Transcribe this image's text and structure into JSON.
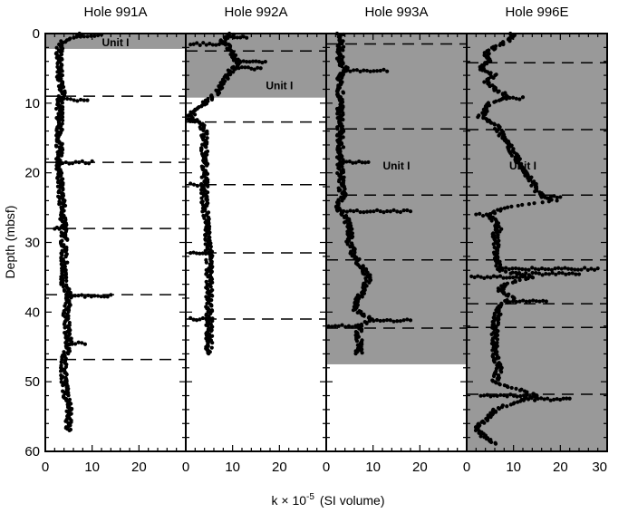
{
  "chart_data": {
    "type": "scatter",
    "ylabel": "Depth (mbsf)",
    "xlabel_prefix": "k × 10",
    "xlabel_exp": "-5",
    "xlabel_suffix": "(SI volume)",
    "ylim": [
      0,
      60
    ],
    "y_inverted": true,
    "xlim": [
      0,
      30
    ],
    "y_ticks": [
      "0",
      "10",
      "20",
      "30",
      "40",
      "50",
      "60"
    ],
    "x_ticks": [
      "0",
      "10",
      "20",
      "30"
    ],
    "grid": false,
    "colors": {
      "unit_fill": "#999999",
      "points": "#000000",
      "background": "#ffffff"
    },
    "panels": [
      {
        "title": "Hole 991A",
        "unit": {
          "label": "Unit   I",
          "top": 0,
          "bottom": 2.2,
          "label_x": 15,
          "label_y": 1.3
        },
        "boundaries": [
          9,
          18.5,
          28,
          37.5,
          46.8
        ],
        "profile": [
          [
            0,
            8
          ],
          [
            0.5,
            6
          ],
          [
            1,
            4
          ],
          [
            1.5,
            3
          ],
          [
            2,
            3
          ],
          [
            4,
            3
          ],
          [
            6,
            3
          ],
          [
            8,
            3.5
          ],
          [
            9,
            3.5
          ],
          [
            10,
            3
          ],
          [
            13,
            3
          ],
          [
            16,
            3
          ],
          [
            18,
            3
          ],
          [
            20,
            3
          ],
          [
            24,
            3.5
          ],
          [
            28,
            4
          ],
          [
            32,
            4
          ],
          [
            36,
            4
          ],
          [
            37.5,
            5
          ],
          [
            38.5,
            5
          ],
          [
            40,
            4.5
          ],
          [
            42,
            4.5
          ],
          [
            44,
            5
          ],
          [
            45,
            5
          ],
          [
            46.8,
            4
          ],
          [
            48,
            4
          ],
          [
            50,
            4
          ],
          [
            52,
            4.5
          ],
          [
            54,
            5
          ],
          [
            56,
            5
          ],
          [
            57,
            5
          ]
        ],
        "spikes": [
          [
            0.3,
            12
          ],
          [
            9.5,
            9
          ],
          [
            18.5,
            10
          ],
          [
            28,
            2
          ],
          [
            37.7,
            14
          ],
          [
            44.5,
            8.5
          ]
        ]
      },
      {
        "title": "Hole 992A",
        "unit": {
          "label": "Unit   I",
          "top": 0,
          "bottom": 9.2,
          "label_x": 20,
          "label_y": 7.5
        },
        "boundaries": [
          2.5,
          12.7,
          21.7,
          31.5,
          41
        ],
        "profile": [
          [
            0,
            10
          ],
          [
            1,
            8
          ],
          [
            2,
            9
          ],
          [
            3,
            10
          ],
          [
            4,
            11
          ],
          [
            5,
            10
          ],
          [
            6,
            9
          ],
          [
            7,
            8
          ],
          [
            8,
            7
          ],
          [
            9,
            6
          ],
          [
            10,
            4
          ],
          [
            11,
            2
          ],
          [
            12,
            1
          ],
          [
            12.7,
            3
          ],
          [
            14,
            4
          ],
          [
            18,
            4
          ],
          [
            21.7,
            4
          ],
          [
            24,
            4
          ],
          [
            28,
            4.5
          ],
          [
            32,
            5
          ],
          [
            36,
            5
          ],
          [
            40,
            5
          ],
          [
            44,
            5
          ],
          [
            46,
            5
          ]
        ],
        "spikes": [
          [
            0.5,
            13
          ],
          [
            4,
            17
          ],
          [
            5,
            16
          ],
          [
            1.5,
            1
          ],
          [
            12.5,
            0.5
          ],
          [
            21.7,
            1
          ],
          [
            31.5,
            1
          ],
          [
            41,
            1
          ]
        ]
      },
      {
        "title": "Hole 993A",
        "unit": {
          "label": "Unit   I",
          "top": 0,
          "bottom": 47.5,
          "label_x": 15,
          "label_y": 19
        },
        "boundaries": [
          1.5,
          13.7,
          23.2,
          32.5,
          42.3
        ],
        "profile": [
          [
            0,
            3
          ],
          [
            2,
            3
          ],
          [
            4,
            3
          ],
          [
            5,
            4
          ],
          [
            6,
            3
          ],
          [
            8,
            3
          ],
          [
            10,
            3
          ],
          [
            13.7,
            3
          ],
          [
            16,
            3
          ],
          [
            20,
            3
          ],
          [
            23.2,
            3.5
          ],
          [
            24,
            3
          ],
          [
            25,
            2
          ],
          [
            26,
            4
          ],
          [
            28,
            5
          ],
          [
            30,
            5
          ],
          [
            32,
            6
          ],
          [
            34,
            8
          ],
          [
            35,
            9
          ],
          [
            36,
            8.5
          ],
          [
            38,
            7
          ],
          [
            39.5,
            6
          ],
          [
            40,
            7
          ],
          [
            41,
            10
          ],
          [
            42,
            7
          ],
          [
            43,
            7
          ],
          [
            45,
            7
          ],
          [
            46,
            7
          ]
        ],
        "spikes": [
          [
            5.3,
            13
          ],
          [
            18.5,
            9
          ],
          [
            25.5,
            18
          ],
          [
            41.2,
            18
          ],
          [
            42,
            0.5
          ]
        ]
      },
      {
        "title": "Hole 996E",
        "unit": {
          "label": "Unit   I",
          "top": 0,
          "bottom": 60,
          "label_x": 12,
          "label_y": 19
        },
        "boundaries": [
          4.2,
          13.8,
          23.2,
          32.5,
          38.8,
          42.2,
          51.8
        ],
        "profile": [
          [
            0,
            10
          ],
          [
            1,
            9
          ],
          [
            2,
            6
          ],
          [
            3,
            4
          ],
          [
            4,
            5
          ],
          [
            5,
            3
          ],
          [
            6,
            6
          ],
          [
            7,
            4
          ],
          [
            8,
            6
          ],
          [
            9,
            9
          ],
          [
            10,
            5
          ],
          [
            11,
            4
          ],
          [
            12,
            3
          ],
          [
            13,
            6
          ],
          [
            23.5,
            16
          ],
          [
            24,
            19
          ],
          [
            25,
            8
          ],
          [
            26,
            5
          ],
          [
            27,
            6
          ],
          [
            28,
            7
          ],
          [
            29,
            6
          ],
          [
            34,
            7
          ],
          [
            35,
            14
          ],
          [
            36,
            8
          ],
          [
            37,
            7
          ],
          [
            38,
            10
          ],
          [
            39,
            7
          ],
          [
            42,
            6
          ],
          [
            44,
            6
          ],
          [
            46,
            6
          ],
          [
            48,
            7
          ],
          [
            50,
            6
          ],
          [
            52,
            15
          ],
          [
            53,
            10
          ],
          [
            54,
            6
          ],
          [
            55,
            5
          ],
          [
            56,
            3
          ],
          [
            57,
            2
          ],
          [
            58,
            4
          ],
          [
            59,
            6
          ]
        ],
        "spikes": [
          [
            9.3,
            12
          ],
          [
            23.5,
            20
          ],
          [
            33.8,
            28
          ],
          [
            34.5,
            24
          ],
          [
            38.5,
            17
          ],
          [
            52.5,
            22
          ],
          [
            52,
            3
          ],
          [
            26,
            2
          ],
          [
            35,
            1
          ]
        ]
      }
    ]
  }
}
